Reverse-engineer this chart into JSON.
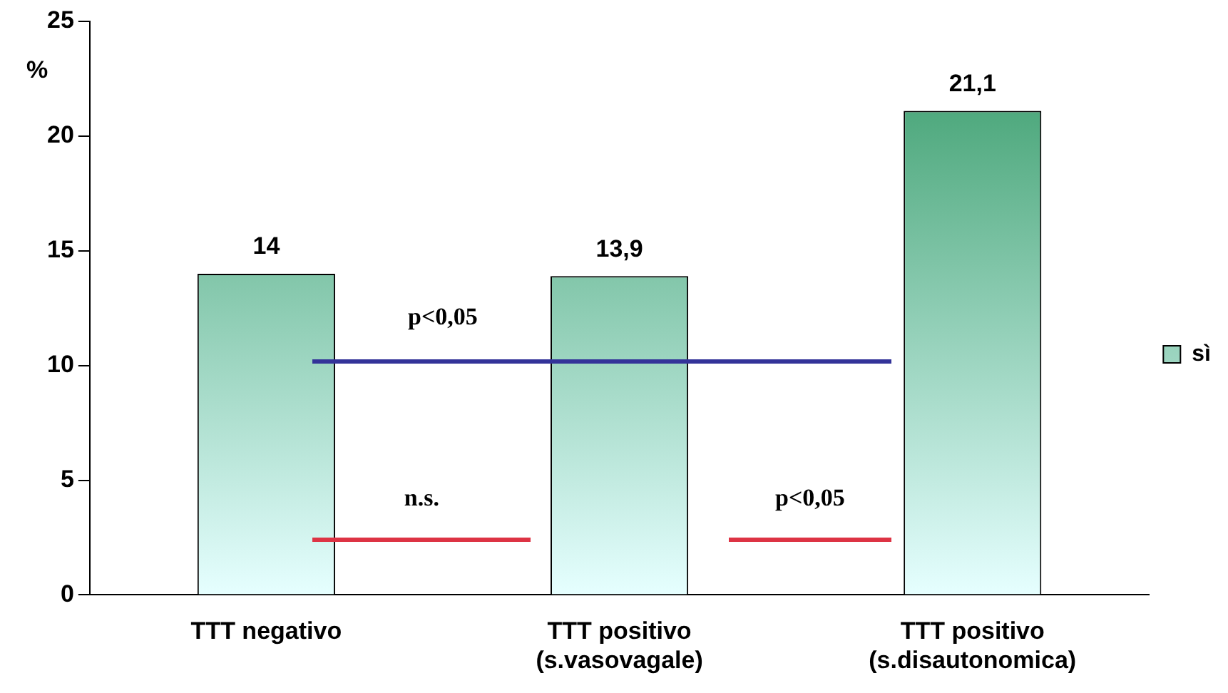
{
  "chart_data": {
    "type": "bar",
    "ylabel": "%",
    "categories": [
      [
        "TTT negativo"
      ],
      [
        "TTT positivo",
        "(s.vasovagale)"
      ],
      [
        "TTT positivo",
        "(s.disautonomica)"
      ]
    ],
    "series": [
      {
        "name": "sì",
        "color": "#339966",
        "values": [
          14,
          13.9,
          21.1
        ],
        "value_labels": [
          "14",
          "13,9",
          "21,1"
        ]
      }
    ],
    "ylim": [
      0,
      25
    ],
    "yticks": [
      0,
      5,
      10,
      15,
      20,
      25
    ],
    "grid": false,
    "legend": "right",
    "annotations": [
      "p<0,05",
      "n.s.",
      "p<0,05"
    ]
  }
}
